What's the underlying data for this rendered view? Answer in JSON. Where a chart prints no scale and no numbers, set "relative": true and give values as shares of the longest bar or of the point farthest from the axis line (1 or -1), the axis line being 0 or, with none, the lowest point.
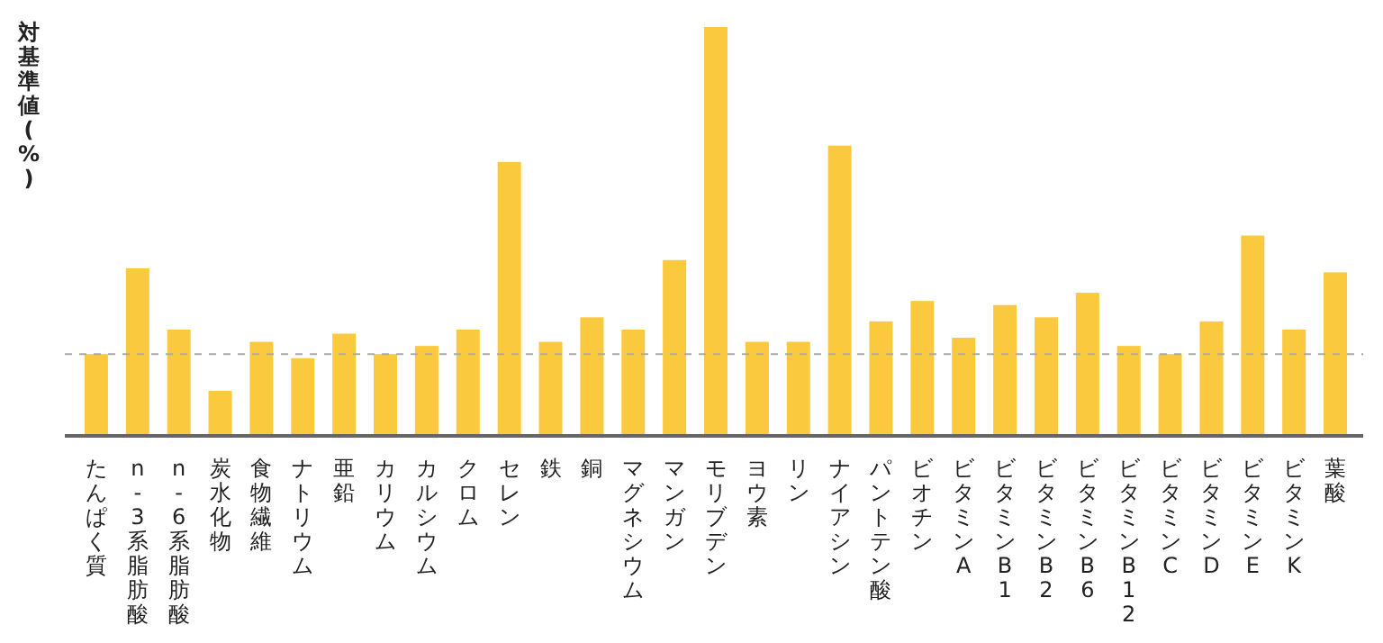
{
  "chart_data": {
    "type": "bar",
    "relative": true,
    "ylabel": "対基準値(%)",
    "categories": [
      "たんぱく質",
      "n-3系脂肪酸",
      "n-6系脂肪酸",
      "炭水化物",
      "食物繊維",
      "ナトリウム",
      "亜鉛",
      "カリウム",
      "カルシウム",
      "クロム",
      "セレン",
      "鉄",
      "銅",
      "マグネシウム",
      "マンガン",
      "モリブデン",
      "ヨウ素",
      "リン",
      "ナイアシン",
      "パントテン酸",
      "ビオチン",
      "ビタミンA",
      "ビタミンB1",
      "ビタミンB2",
      "ビタミンB6",
      "ビタミンB12",
      "ビタミンC",
      "ビタミンD",
      "ビタミンE",
      "ビタミンK",
      "葉酸"
    ],
    "values": [
      0.2,
      0.41,
      0.26,
      0.11,
      0.23,
      0.19,
      0.25,
      0.2,
      0.22,
      0.26,
      0.67,
      0.23,
      0.29,
      0.26,
      0.43,
      1,
      0.23,
      0.23,
      0.71,
      0.28,
      0.33,
      0.24,
      0.32,
      0.29,
      0.35,
      0.22,
      0.2,
      0.28,
      0.49,
      0.26,
      0.4
    ],
    "color": "#fbc93d",
    "ref_lines": [
      {
        "axis": "y",
        "value": 0.2,
        "color": "#aaaaaa",
        "line_style": "dashed"
      }
    ]
  }
}
